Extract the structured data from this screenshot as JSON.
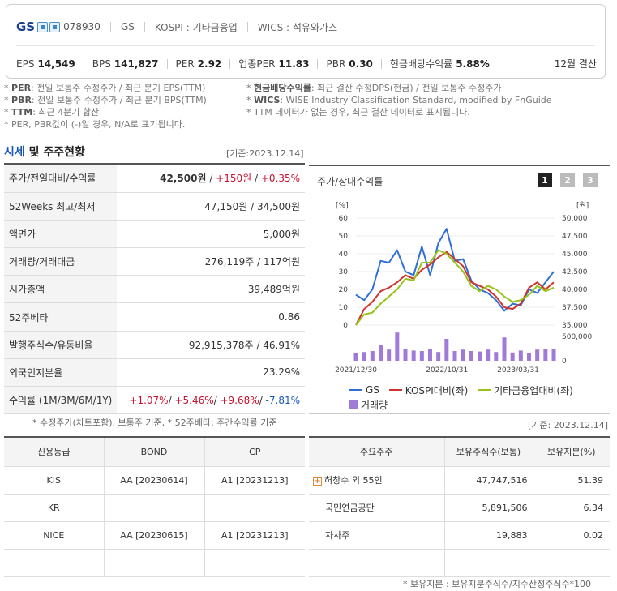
{
  "header": {
    "name": "GS",
    "code": "078930",
    "market_name": "GS",
    "kospi": "KOSPI : 기타금융업",
    "wics": "WICS : 석유와가스",
    "metrics": [
      {
        "label": "EPS",
        "value": "14,549"
      },
      {
        "label": "BPS",
        "value": "141,827"
      },
      {
        "label": "PER",
        "value": "2.92"
      },
      {
        "label": "업종PER",
        "value": "11.83"
      },
      {
        "label": "PBR",
        "value": "0.30"
      },
      {
        "label": "현금배당수익률",
        "value": "5.88%"
      }
    ],
    "fiscal": "12월 결산"
  },
  "notes": {
    "left": [
      {
        "key": "PER",
        "text": ": 전일 보통주 수정주가 / 최근 분기 EPS(TTM)"
      },
      {
        "key": "PBR",
        "text": ": 전일 보통주 수정주가 / 최근 분기 BPS(TTM)"
      },
      {
        "key": "TTM",
        "text": ": 최근 4분기 합산"
      },
      {
        "key": "",
        "text": "PER, PBR값이 (-)일 경우, N/A로 표기됩니다."
      }
    ],
    "right": [
      {
        "key": "현금배당수익률",
        "text": ": 최근 결산 수정DPS(현금) / 전일 보통주 수정주가"
      },
      {
        "key": "WICS",
        "text": ": WISE Industry Classification Standard, modified by FnGuide"
      },
      {
        "key": "",
        "text": "TTM 데이터가 없는 경우, 최근 결산 데이터로 표시됩니다."
      }
    ]
  },
  "section": {
    "title_a": "시세",
    "title_b": " 및 주주현황",
    "date": "[기준:2023.12.14]"
  },
  "info_rows": [
    {
      "label": "주가/전일대비/수익률"
    },
    {
      "label": "52Weeks 최고/최저",
      "value": "47,150원 / 34,500원"
    },
    {
      "label": "액면가",
      "value": "5,000원"
    },
    {
      "label": "거래량/거래대금",
      "value": "276,119주 / 117억원"
    },
    {
      "label": "시가총액",
      "value": "39,489억원"
    },
    {
      "label": "52주베타",
      "value": "0.86"
    },
    {
      "label": "발행주식수/유동비율",
      "value": "92,915,378주 / 46.91%"
    },
    {
      "label": "외국인지분율",
      "value": "23.29%"
    },
    {
      "label": "수익률 (1M/3M/6M/1Y)"
    }
  ],
  "price": {
    "value": "42,500원",
    "sep": " / ",
    "change": "+150원",
    "rate": "+0.35%"
  },
  "returns": {
    "m1": "+1.07%",
    "m3": "+5.46%",
    "m6": "+9.68%",
    "y1": "-7.81%"
  },
  "info_note": "* 수정주가(차트포함), 보통주 기준, * 52주베타: 주간수익률 기준",
  "chart": {
    "title": "주가/상대수익률",
    "periods": [
      "1",
      "2",
      "3"
    ],
    "left_unit": "[%]",
    "right_unit": "[원]",
    "legend_volume": "거래량",
    "colors": {
      "gs": "#2f6fd6",
      "kospi": "#d0332c",
      "sector": "#97c21a",
      "volume": "#a07ad8"
    }
  },
  "chart_data": {
    "type": "line",
    "x_ticks": [
      "2021/12/30",
      "2022/10/31",
      "2023/03/31"
    ],
    "y_left_ticks": [
      "60",
      "50",
      "40",
      "30",
      "20",
      "10",
      "0"
    ],
    "y_right_ticks": [
      "50,000",
      "47,500",
      "45,000",
      "42,500",
      "40,000",
      "37,500",
      "35,000"
    ],
    "y_left_range": [
      0,
      60
    ],
    "y_right_range": [
      35000,
      50000
    ],
    "volume_ticks": [
      "500,000",
      "0"
    ],
    "volume_range": [
      0,
      500000
    ],
    "series": [
      {
        "name": "GS",
        "values": [
          17,
          14,
          20,
          36,
          35,
          42,
          30,
          28,
          44,
          28,
          46,
          54,
          36,
          37,
          25,
          20,
          18,
          14,
          8,
          12,
          11,
          20,
          18,
          24,
          30
        ]
      },
      {
        "name": "KOSPI대비(좌)",
        "values": [
          0,
          9,
          13,
          19,
          21,
          24,
          28,
          26,
          31,
          34,
          38,
          41,
          37,
          33,
          24,
          22,
          20,
          16,
          10,
          9,
          12,
          21,
          24,
          20,
          24
        ]
      },
      {
        "name": "기타금융업대비(좌)",
        "values": [
          0,
          6,
          7,
          12,
          16,
          20,
          26,
          25,
          35,
          35,
          42,
          40,
          35,
          30,
          22,
          19,
          22,
          20,
          16,
          13,
          14,
          17,
          22,
          19,
          21
        ]
      }
    ],
    "volume": [
      150000,
      180000,
      200000,
      330000,
      230000,
      580000,
      250000,
      210000,
      200000,
      240000,
      180000,
      450000,
      200000,
      230000,
      200000,
      190000,
      230000,
      180000,
      480000,
      170000,
      210000,
      150000,
      230000,
      250000,
      240000
    ]
  },
  "credit": {
    "headers": [
      "신용등급",
      "BOND",
      "CP"
    ],
    "rows": [
      {
        "agency": "KIS",
        "bond": "AA  [20230614]",
        "cp": "A1  [20231213]"
      },
      {
        "agency": "KR",
        "bond": "",
        "cp": ""
      },
      {
        "agency": "NICE",
        "bond": "AA  [20230615]",
        "cp": "A1  [20231213]"
      }
    ]
  },
  "holders": {
    "date": "[기준: 2023.12.14]",
    "headers": [
      "주요주주",
      "보유주식수(보통)",
      "보유지분(%)"
    ],
    "rows": [
      {
        "name": "허창수 외 55인",
        "shares": "47,747,516",
        "pct": "51.39"
      },
      {
        "name": "국민연금공단",
        "shares": "5,891,506",
        "pct": "6.34"
      },
      {
        "name": "자사주",
        "shares": "19,883",
        "pct": "0.02"
      }
    ],
    "note": "* 보유지분 : 보유지분주식수/지수산정주식수*100"
  }
}
